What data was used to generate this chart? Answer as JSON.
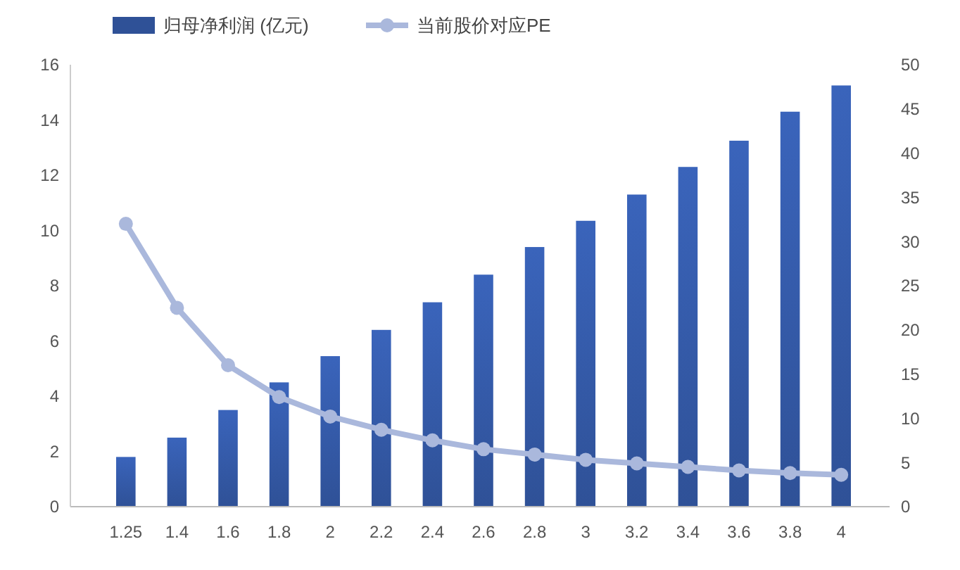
{
  "chart_data": {
    "type": "bar",
    "categories": [
      "1.25",
      "1.4",
      "1.6",
      "1.8",
      "2",
      "2.2",
      "2.4",
      "2.6",
      "2.8",
      "3",
      "3.2",
      "3.4",
      "3.6",
      "3.8",
      "4"
    ],
    "series": [
      {
        "name": "归母净利润 (亿元)",
        "color": "#2f5197",
        "values": [
          1.8,
          2.5,
          3.5,
          4.5,
          5.45,
          6.4,
          7.4,
          8.4,
          9.4,
          10.35,
          11.3,
          12.3,
          13.25,
          14.3,
          15.25
        ]
      },
      {
        "name": "当前股价对应PE",
        "type": "line",
        "axis": "y2",
        "color": "#aab8dc",
        "values": [
          32,
          22.5,
          16,
          12.4,
          10.2,
          8.7,
          7.5,
          6.5,
          5.9,
          5.3,
          4.9,
          4.5,
          4.1,
          3.8,
          3.6
        ]
      }
    ],
    "ylim": [
      0,
      16
    ],
    "yticks": [
      0,
      2,
      4,
      6,
      8,
      10,
      12,
      14,
      16
    ],
    "y2lim": [
      0,
      50
    ],
    "y2ticks": [
      0,
      5,
      10,
      15,
      20,
      25,
      30,
      35,
      40,
      45,
      50
    ],
    "legend": "top left",
    "marker": "circle",
    "line_style": "solid"
  }
}
